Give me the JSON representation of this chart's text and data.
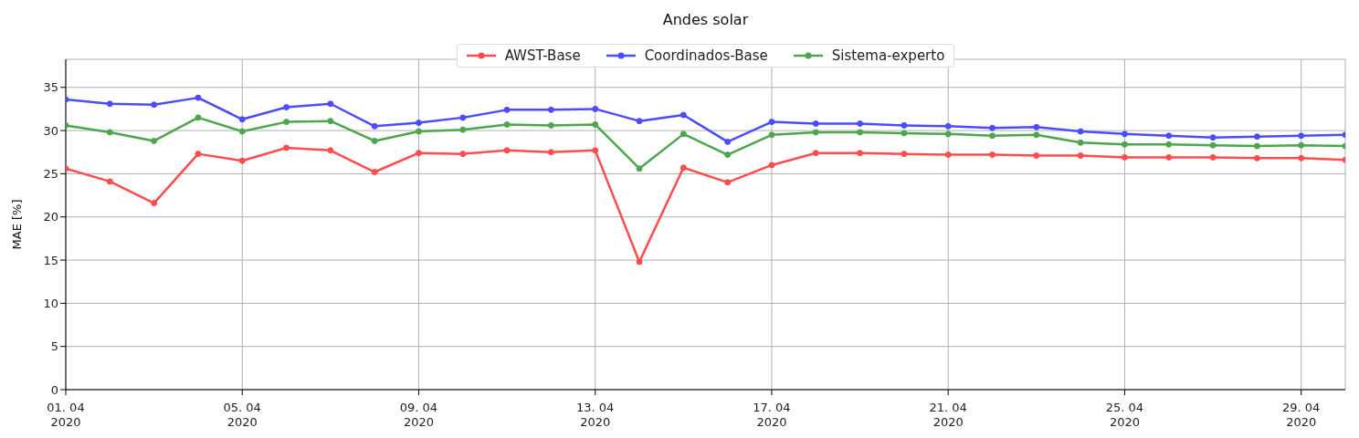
{
  "chart_data": {
    "type": "line",
    "title": "Andes solar",
    "ylabel": "MAE [%]",
    "x": [
      "2020-04-01",
      "2020-04-02",
      "2020-04-03",
      "2020-04-04",
      "2020-04-05",
      "2020-04-06",
      "2020-04-07",
      "2020-04-08",
      "2020-04-09",
      "2020-04-10",
      "2020-04-11",
      "2020-04-12",
      "2020-04-13",
      "2020-04-14",
      "2020-04-15",
      "2020-04-16",
      "2020-04-17",
      "2020-04-18",
      "2020-04-19",
      "2020-04-20",
      "2020-04-21",
      "2020-04-22",
      "2020-04-23",
      "2020-04-24",
      "2020-04-25",
      "2020-04-26",
      "2020-04-27",
      "2020-04-28",
      "2020-04-29",
      "2020-04-30"
    ],
    "series": [
      {
        "name": "AWST-Base",
        "color": "#ff4c4c",
        "values": [
          25.6,
          24.1,
          21.6,
          27.3,
          26.5,
          28.0,
          27.7,
          25.2,
          27.4,
          27.3,
          27.7,
          27.5,
          27.7,
          14.8,
          25.7,
          24.0,
          26.0,
          27.4,
          27.4,
          27.3,
          27.2,
          27.2,
          27.1,
          27.1,
          26.9,
          26.9,
          26.9,
          26.8,
          26.8,
          26.6
        ]
      },
      {
        "name": "Coordinados-Base",
        "color": "#4c4cff",
        "values": [
          33.6,
          33.1,
          33.0,
          33.8,
          31.3,
          32.7,
          33.1,
          30.5,
          30.9,
          31.5,
          32.4,
          32.4,
          32.5,
          31.1,
          31.8,
          28.7,
          31.0,
          30.8,
          30.8,
          30.6,
          30.5,
          30.3,
          30.4,
          29.9,
          29.6,
          29.4,
          29.2,
          29.3,
          29.4,
          29.5
        ]
      },
      {
        "name": "Sistema-experto",
        "color": "#4ca64c",
        "values": [
          30.6,
          29.8,
          28.8,
          31.5,
          29.9,
          31.0,
          31.1,
          28.8,
          29.9,
          30.1,
          30.7,
          30.6,
          30.7,
          25.6,
          29.6,
          27.2,
          29.5,
          29.8,
          29.8,
          29.7,
          29.6,
          29.4,
          29.5,
          28.6,
          28.4,
          28.4,
          28.3,
          28.2,
          28.3,
          28.2
        ]
      }
    ],
    "xlim": [
      "2020-04-01",
      "2020-04-30"
    ],
    "xticks": [
      {
        "value": "2020-04-01",
        "label": "01. 04\n2020"
      },
      {
        "value": "2020-04-05",
        "label": "05. 04\n2020"
      },
      {
        "value": "2020-04-09",
        "label": "09. 04\n2020"
      },
      {
        "value": "2020-04-13",
        "label": "13. 04\n2020"
      },
      {
        "value": "2020-04-17",
        "label": "17. 04\n2020"
      },
      {
        "value": "2020-04-21",
        "label": "21. 04\n2020"
      },
      {
        "value": "2020-04-25",
        "label": "25. 04\n2020"
      },
      {
        "value": "2020-04-29",
        "label": "29. 04\n2020"
      }
    ],
    "ylim": [
      0,
      38.25
    ],
    "yticks": [
      0,
      5,
      10,
      15,
      20,
      25,
      30,
      35
    ],
    "grid": true,
    "legend": "top",
    "marker": "circle",
    "line_style": "solid"
  }
}
